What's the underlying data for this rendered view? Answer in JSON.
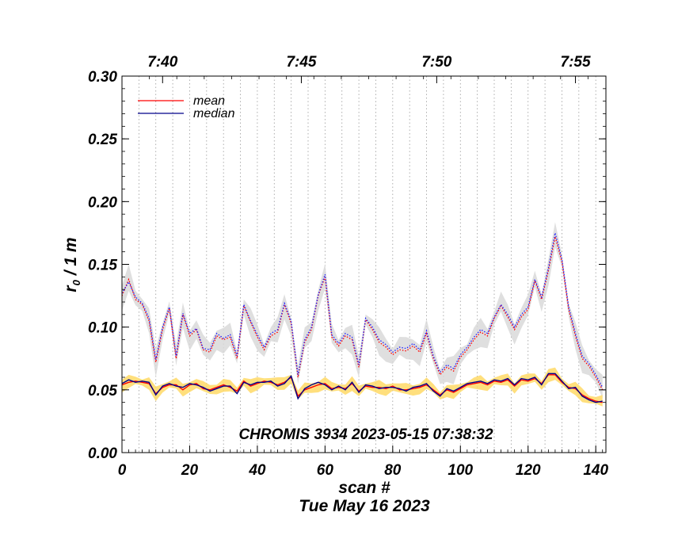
{
  "chart_data": {
    "type": "line",
    "xlabel": "scan #",
    "ylabel": "r₀ / 1 m",
    "ylabel_main": "r",
    "ylabel_sub": "0",
    "ylabel_rest": " / 1 m",
    "date_label": "Tue May 16 2023",
    "annotation": "CHROMIS 3934 2023-05-15 07:38:32",
    "xlim": [
      0,
      143
    ],
    "ylim": [
      0.0,
      0.3
    ],
    "x_ticks": [
      0,
      20,
      40,
      60,
      80,
      100,
      120,
      140
    ],
    "x_tick_labels": [
      "0",
      "20",
      "40",
      "60",
      "80",
      "100",
      "120",
      "140"
    ],
    "y_ticks": [
      0.0,
      0.05,
      0.1,
      0.15,
      0.2,
      0.25,
      0.3
    ],
    "y_tick_labels": [
      "0.00",
      "0.05",
      "0.10",
      "0.15",
      "0.20",
      "0.25",
      "0.30"
    ],
    "top_axis": {
      "ticks": [
        12,
        53,
        93,
        134
      ],
      "labels": [
        "7:40",
        "7:45",
        "7:50",
        "7:55"
      ]
    },
    "vertical_grid": [
      5,
      10,
      15,
      20,
      25,
      30,
      35,
      40,
      45,
      50,
      55,
      60,
      65,
      70,
      75,
      80,
      85,
      90,
      95,
      100,
      105,
      110,
      115,
      120,
      125,
      130,
      135,
      140
    ],
    "grid": "vertical dotted",
    "legend": {
      "position": "top-left",
      "items": [
        {
          "name": "mean",
          "color": "#ff0000"
        },
        {
          "name": "median",
          "color": "#00008b"
        }
      ]
    },
    "series": [
      {
        "name": "mean",
        "role": "upper",
        "color": "#ff0000",
        "band_color": "#d9d9d9",
        "points": [
          [
            0,
            0.125
          ],
          [
            2,
            0.138
          ],
          [
            4,
            0.122
          ],
          [
            6,
            0.118
          ],
          [
            8,
            0.105
          ],
          [
            10,
            0.072
          ],
          [
            12,
            0.098
          ],
          [
            14,
            0.115
          ],
          [
            16,
            0.075
          ],
          [
            18,
            0.11
          ],
          [
            20,
            0.093
          ],
          [
            22,
            0.098
          ],
          [
            24,
            0.082
          ],
          [
            26,
            0.08
          ],
          [
            28,
            0.093
          ],
          [
            30,
            0.09
          ],
          [
            32,
            0.092
          ],
          [
            34,
            0.075
          ],
          [
            36,
            0.117
          ],
          [
            38,
            0.104
          ],
          [
            40,
            0.092
          ],
          [
            42,
            0.082
          ],
          [
            44,
            0.093
          ],
          [
            46,
            0.096
          ],
          [
            48,
            0.118
          ],
          [
            50,
            0.103
          ],
          [
            52,
            0.06
          ],
          [
            54,
            0.088
          ],
          [
            56,
            0.098
          ],
          [
            58,
            0.125
          ],
          [
            60,
            0.14
          ],
          [
            62,
            0.092
          ],
          [
            64,
            0.085
          ],
          [
            66,
            0.093
          ],
          [
            68,
            0.09
          ],
          [
            70,
            0.068
          ],
          [
            72,
            0.106
          ],
          [
            74,
            0.098
          ],
          [
            76,
            0.088
          ],
          [
            78,
            0.084
          ],
          [
            80,
            0.078
          ],
          [
            82,
            0.082
          ],
          [
            84,
            0.081
          ],
          [
            86,
            0.085
          ],
          [
            88,
            0.08
          ],
          [
            90,
            0.095
          ],
          [
            92,
            0.075
          ],
          [
            94,
            0.062
          ],
          [
            96,
            0.068
          ],
          [
            98,
            0.065
          ],
          [
            100,
            0.076
          ],
          [
            102,
            0.082
          ],
          [
            104,
            0.09
          ],
          [
            106,
            0.096
          ],
          [
            108,
            0.093
          ],
          [
            110,
            0.107
          ],
          [
            112,
            0.117
          ],
          [
            114,
            0.108
          ],
          [
            116,
            0.098
          ],
          [
            118,
            0.108
          ],
          [
            120,
            0.114
          ],
          [
            122,
            0.137
          ],
          [
            124,
            0.122
          ],
          [
            126,
            0.145
          ],
          [
            128,
            0.172
          ],
          [
            130,
            0.152
          ],
          [
            132,
            0.114
          ],
          [
            134,
            0.093
          ],
          [
            136,
            0.075
          ],
          [
            138,
            0.069
          ],
          [
            140,
            0.06
          ],
          [
            142,
            0.05
          ]
        ]
      },
      {
        "name": "median",
        "role": "upper",
        "color": "#2020ff",
        "points": [
          [
            0,
            0.127
          ],
          [
            2,
            0.136
          ],
          [
            4,
            0.124
          ],
          [
            6,
            0.119
          ],
          [
            8,
            0.107
          ],
          [
            10,
            0.074
          ],
          [
            12,
            0.1
          ],
          [
            14,
            0.116
          ],
          [
            16,
            0.077
          ],
          [
            18,
            0.111
          ],
          [
            20,
            0.095
          ],
          [
            22,
            0.099
          ],
          [
            24,
            0.083
          ],
          [
            26,
            0.082
          ],
          [
            28,
            0.095
          ],
          [
            30,
            0.091
          ],
          [
            32,
            0.094
          ],
          [
            34,
            0.077
          ],
          [
            36,
            0.118
          ],
          [
            38,
            0.105
          ],
          [
            40,
            0.094
          ],
          [
            42,
            0.084
          ],
          [
            44,
            0.095
          ],
          [
            46,
            0.098
          ],
          [
            48,
            0.119
          ],
          [
            50,
            0.105
          ],
          [
            52,
            0.062
          ],
          [
            54,
            0.09
          ],
          [
            56,
            0.1
          ],
          [
            58,
            0.126
          ],
          [
            60,
            0.142
          ],
          [
            62,
            0.094
          ],
          [
            64,
            0.087
          ],
          [
            66,
            0.095
          ],
          [
            68,
            0.092
          ],
          [
            70,
            0.07
          ],
          [
            72,
            0.107
          ],
          [
            74,
            0.1
          ],
          [
            76,
            0.09
          ],
          [
            78,
            0.086
          ],
          [
            80,
            0.08
          ],
          [
            82,
            0.084
          ],
          [
            84,
            0.083
          ],
          [
            86,
            0.087
          ],
          [
            88,
            0.082
          ],
          [
            90,
            0.097
          ],
          [
            92,
            0.077
          ],
          [
            94,
            0.064
          ],
          [
            96,
            0.07
          ],
          [
            98,
            0.067
          ],
          [
            100,
            0.078
          ],
          [
            102,
            0.084
          ],
          [
            104,
            0.092
          ],
          [
            106,
            0.098
          ],
          [
            108,
            0.095
          ],
          [
            110,
            0.108
          ],
          [
            112,
            0.118
          ],
          [
            114,
            0.11
          ],
          [
            116,
            0.1
          ],
          [
            118,
            0.11
          ],
          [
            120,
            0.116
          ],
          [
            122,
            0.138
          ],
          [
            124,
            0.124
          ],
          [
            126,
            0.147
          ],
          [
            128,
            0.175
          ],
          [
            130,
            0.154
          ],
          [
            132,
            0.116
          ],
          [
            134,
            0.095
          ],
          [
            136,
            0.077
          ],
          [
            138,
            0.071
          ],
          [
            140,
            0.062
          ],
          [
            142,
            0.052
          ]
        ]
      },
      {
        "name": "mean",
        "role": "lower",
        "color": "#ff0000",
        "band_color": "#ffd966",
        "points": [
          [
            0,
            0.054
          ],
          [
            2,
            0.056
          ],
          [
            4,
            0.057
          ],
          [
            6,
            0.056
          ],
          [
            8,
            0.055
          ],
          [
            10,
            0.047
          ],
          [
            12,
            0.052
          ],
          [
            14,
            0.054
          ],
          [
            16,
            0.054
          ],
          [
            18,
            0.05
          ],
          [
            20,
            0.054
          ],
          [
            22,
            0.055
          ],
          [
            24,
            0.051
          ],
          [
            26,
            0.05
          ],
          [
            28,
            0.052
          ],
          [
            30,
            0.054
          ],
          [
            32,
            0.052
          ],
          [
            34,
            0.049
          ],
          [
            36,
            0.057
          ],
          [
            38,
            0.053
          ],
          [
            40,
            0.055
          ],
          [
            42,
            0.057
          ],
          [
            44,
            0.056
          ],
          [
            46,
            0.054
          ],
          [
            48,
            0.056
          ],
          [
            50,
            0.06
          ],
          [
            52,
            0.045
          ],
          [
            54,
            0.05
          ],
          [
            56,
            0.052
          ],
          [
            58,
            0.054
          ],
          [
            60,
            0.055
          ],
          [
            62,
            0.051
          ],
          [
            64,
            0.052
          ],
          [
            66,
            0.051
          ],
          [
            68,
            0.055
          ],
          [
            70,
            0.049
          ],
          [
            72,
            0.053
          ],
          [
            74,
            0.052
          ],
          [
            76,
            0.052
          ],
          [
            78,
            0.051
          ],
          [
            80,
            0.053
          ],
          [
            82,
            0.05
          ],
          [
            84,
            0.05
          ],
          [
            86,
            0.051
          ],
          [
            88,
            0.052
          ],
          [
            90,
            0.054
          ],
          [
            92,
            0.05
          ],
          [
            94,
            0.046
          ],
          [
            96,
            0.05
          ],
          [
            98,
            0.048
          ],
          [
            100,
            0.051
          ],
          [
            102,
            0.054
          ],
          [
            104,
            0.055
          ],
          [
            106,
            0.056
          ],
          [
            108,
            0.054
          ],
          [
            110,
            0.057
          ],
          [
            112,
            0.056
          ],
          [
            114,
            0.058
          ],
          [
            116,
            0.053
          ],
          [
            118,
            0.058
          ],
          [
            120,
            0.057
          ],
          [
            122,
            0.059
          ],
          [
            124,
            0.055
          ],
          [
            126,
            0.062
          ],
          [
            128,
            0.062
          ],
          [
            130,
            0.056
          ],
          [
            132,
            0.052
          ],
          [
            134,
            0.051
          ],
          [
            136,
            0.046
          ],
          [
            138,
            0.043
          ],
          [
            140,
            0.041
          ],
          [
            142,
            0.04
          ]
        ]
      },
      {
        "name": "median",
        "role": "lower",
        "color": "#00008b",
        "points": [
          [
            0,
            0.055
          ],
          [
            2,
            0.058
          ],
          [
            4,
            0.056
          ],
          [
            6,
            0.057
          ],
          [
            8,
            0.056
          ],
          [
            10,
            0.046
          ],
          [
            12,
            0.053
          ],
          [
            14,
            0.055
          ],
          [
            16,
            0.053
          ],
          [
            18,
            0.052
          ],
          [
            20,
            0.055
          ],
          [
            22,
            0.054
          ],
          [
            24,
            0.052
          ],
          [
            26,
            0.049
          ],
          [
            28,
            0.051
          ],
          [
            30,
            0.053
          ],
          [
            32,
            0.053
          ],
          [
            34,
            0.047
          ],
          [
            36,
            0.056
          ],
          [
            38,
            0.054
          ],
          [
            40,
            0.056
          ],
          [
            42,
            0.056
          ],
          [
            44,
            0.057
          ],
          [
            46,
            0.053
          ],
          [
            48,
            0.055
          ],
          [
            50,
            0.061
          ],
          [
            52,
            0.043
          ],
          [
            54,
            0.051
          ],
          [
            56,
            0.054
          ],
          [
            58,
            0.056
          ],
          [
            60,
            0.054
          ],
          [
            62,
            0.05
          ],
          [
            64,
            0.053
          ],
          [
            66,
            0.05
          ],
          [
            68,
            0.056
          ],
          [
            70,
            0.048
          ],
          [
            72,
            0.054
          ],
          [
            74,
            0.053
          ],
          [
            76,
            0.051
          ],
          [
            78,
            0.052
          ],
          [
            80,
            0.052
          ],
          [
            82,
            0.051
          ],
          [
            84,
            0.049
          ],
          [
            86,
            0.052
          ],
          [
            88,
            0.053
          ],
          [
            90,
            0.055
          ],
          [
            92,
            0.049
          ],
          [
            94,
            0.045
          ],
          [
            96,
            0.051
          ],
          [
            98,
            0.049
          ],
          [
            100,
            0.052
          ],
          [
            102,
            0.055
          ],
          [
            104,
            0.056
          ],
          [
            106,
            0.057
          ],
          [
            108,
            0.055
          ],
          [
            110,
            0.058
          ],
          [
            112,
            0.057
          ],
          [
            114,
            0.059
          ],
          [
            116,
            0.054
          ],
          [
            118,
            0.059
          ],
          [
            120,
            0.058
          ],
          [
            122,
            0.06
          ],
          [
            124,
            0.054
          ],
          [
            126,
            0.063
          ],
          [
            128,
            0.063
          ],
          [
            130,
            0.057
          ],
          [
            132,
            0.051
          ],
          [
            134,
            0.052
          ],
          [
            136,
            0.045
          ],
          [
            138,
            0.042
          ],
          [
            140,
            0.04
          ],
          [
            142,
            0.041
          ]
        ]
      }
    ]
  }
}
